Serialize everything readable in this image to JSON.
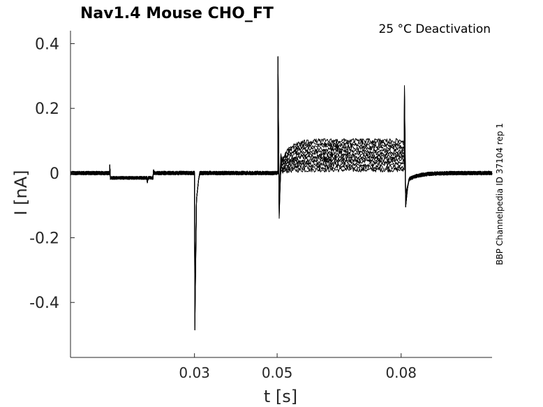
{
  "chart_data": {
    "type": "line",
    "title": "Nav1.4  Mouse  CHO_FT",
    "annotation": "25 °C  Deactivation",
    "side_label": "BBP Channelpedia ID 37104 rep 1",
    "xlabel": "t [s]",
    "ylabel": "I [nA]",
    "xlim": [
      0.0,
      0.102
    ],
    "ylim": [
      -0.57,
      0.44
    ],
    "xticks": [
      0.03,
      0.05,
      0.08
    ],
    "xtick_labels": [
      "0.03",
      "0.05",
      "0.08"
    ],
    "yticks": [
      0.4,
      0.2,
      0,
      -0.2,
      -0.4
    ],
    "ytick_labels": [
      "0.4",
      "0.2",
      "0",
      "-0.2",
      "-0.4"
    ],
    "grid": false,
    "series_count": 12,
    "segments": [
      {
        "from": 0.0,
        "to": 0.0095,
        "level": 0.0
      },
      {
        "from": 0.0095,
        "to": 0.0201,
        "level": -0.015
      },
      {
        "from": 0.0201,
        "to": 0.0502,
        "level": 0.0
      },
      {
        "from": 0.0502,
        "to": 0.0808,
        "level_min": 0.01,
        "level_max": 0.1
      },
      {
        "from": 0.0808,
        "to": 0.102,
        "level": 0.0
      }
    ],
    "events": [
      {
        "t": 0.0095,
        "peak": 0.025
      },
      {
        "t": 0.0186,
        "peak": -0.03
      },
      {
        "t": 0.0201,
        "peak": 0.01
      },
      {
        "t": 0.0301,
        "peak": -0.485
      },
      {
        "t": 0.0502,
        "peak": 0.36
      },
      {
        "t": 0.0502,
        "peak": -0.14
      },
      {
        "t": 0.0808,
        "peak": 0.27
      },
      {
        "t": 0.0808,
        "peak": -0.105
      }
    ]
  }
}
